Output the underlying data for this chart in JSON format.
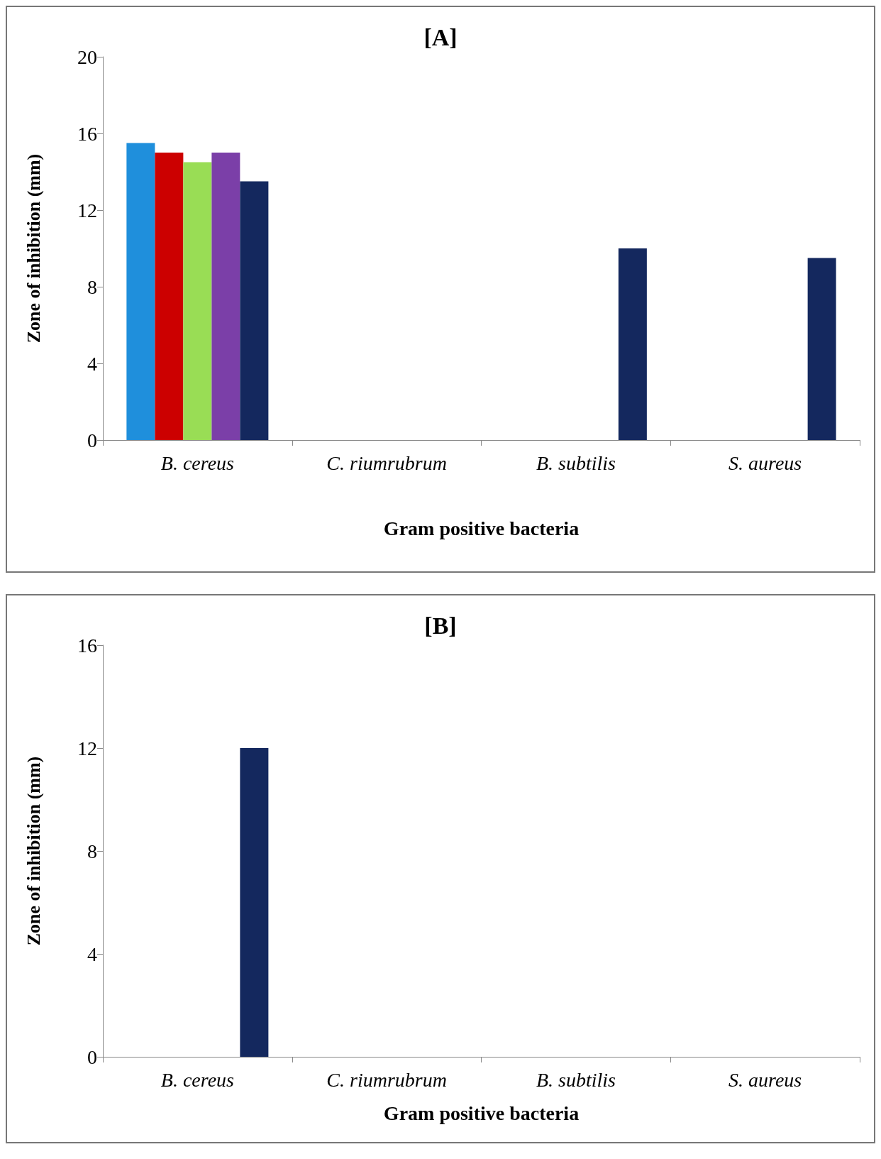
{
  "chart_data": [
    {
      "type": "bar",
      "title": "[A]",
      "xlabel": "Gram positive bacteria",
      "ylabel": "Zone of inhibition (mm)",
      "categories": [
        "B. cereus",
        "C. riumrubrum",
        "B. subtilis",
        "S. aureus"
      ],
      "ylim": [
        0,
        20
      ],
      "yticks": [
        0,
        4,
        8,
        12,
        16,
        20
      ],
      "series": [
        {
          "color": "#1f8fdc",
          "values": [
            15.5,
            0,
            0,
            0
          ]
        },
        {
          "color": "#cc0000",
          "values": [
            15,
            0,
            0,
            0
          ]
        },
        {
          "color": "#99dd55",
          "values": [
            14.5,
            0,
            0,
            0
          ]
        },
        {
          "color": "#7b3fa8",
          "values": [
            15,
            0,
            0,
            0
          ]
        },
        {
          "color": "#14285e",
          "values": [
            13.5,
            0,
            10,
            9.5
          ]
        }
      ]
    },
    {
      "type": "bar",
      "title": "[B]",
      "xlabel": "Gram positive bacteria",
      "ylabel": "Zone of inhibition (mm)",
      "categories": [
        "B. cereus",
        "C. riumrubrum",
        "B. subtilis",
        "S. aureus"
      ],
      "ylim": [
        0,
        16
      ],
      "yticks": [
        0,
        4,
        8,
        12,
        16
      ],
      "series": [
        {
          "color": "#1f8fdc",
          "values": [
            0,
            0,
            0,
            0
          ]
        },
        {
          "color": "#cc0000",
          "values": [
            0,
            0,
            0,
            0
          ]
        },
        {
          "color": "#99dd55",
          "values": [
            0,
            0,
            0,
            0
          ]
        },
        {
          "color": "#7b3fa8",
          "values": [
            0,
            0,
            0,
            0
          ]
        },
        {
          "color": "#14285e",
          "values": [
            12,
            0,
            0,
            0
          ]
        }
      ]
    }
  ]
}
